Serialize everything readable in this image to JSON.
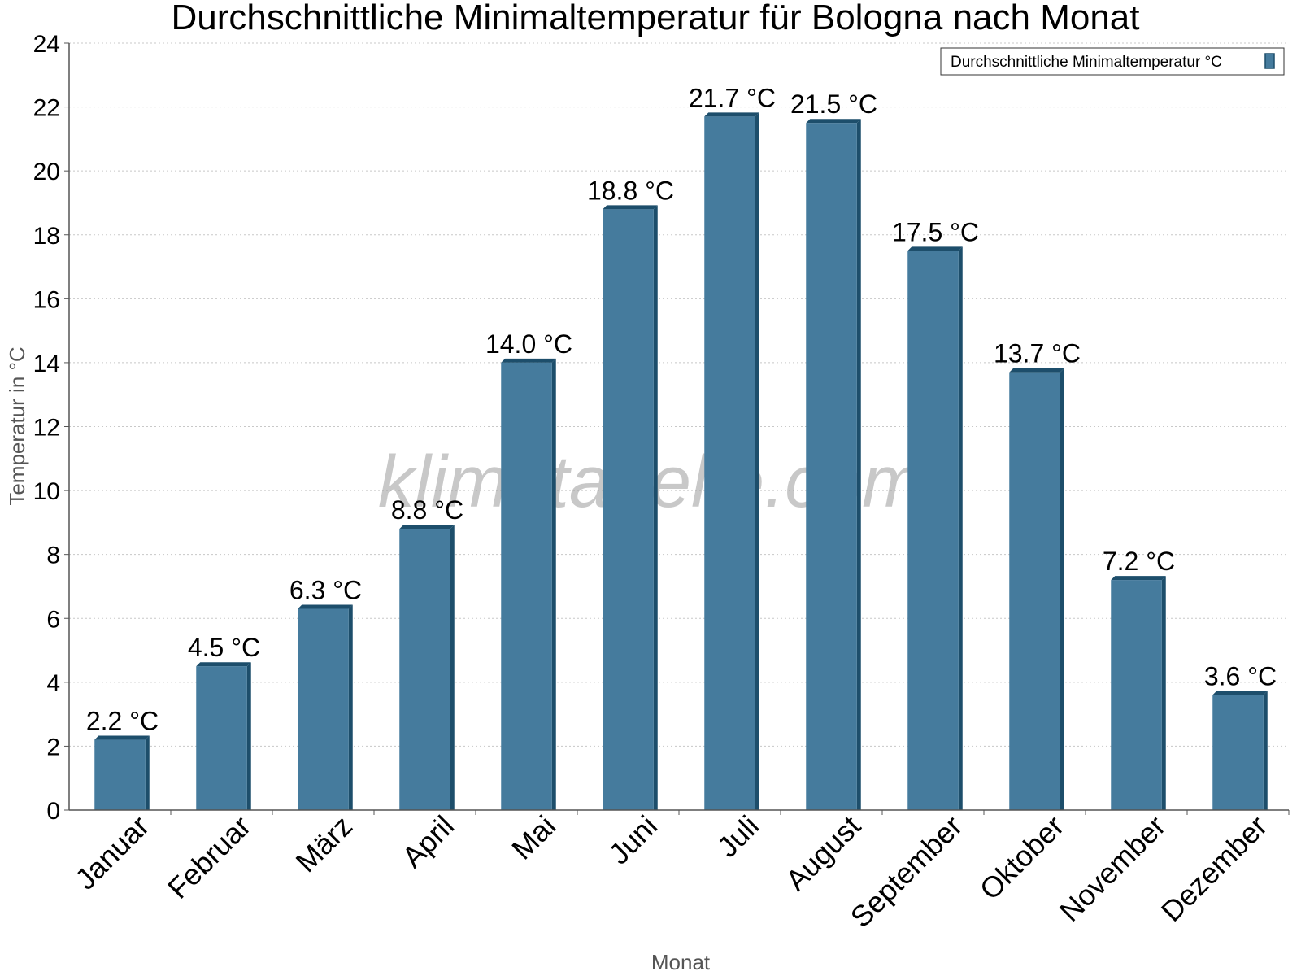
{
  "chart_data": {
    "type": "bar",
    "title": "Durchschnittliche Minimaltemperatur für Bologna nach Monat",
    "xlabel": "Monat",
    "ylabel": "Temperatur in °C",
    "categories": [
      "Januar",
      "Februar",
      "März",
      "April",
      "Mai",
      "Juni",
      "Juli",
      "August",
      "September",
      "Oktober",
      "November",
      "Dezember"
    ],
    "series": [
      {
        "name": "Durchschnittliche Minimaltemperatur °C",
        "values": [
          2.2,
          4.5,
          6.3,
          8.8,
          14.0,
          18.8,
          21.7,
          21.5,
          17.5,
          13.7,
          7.2,
          3.6
        ],
        "labels": [
          "2.2 °C",
          "4.5 °C",
          "6.3 °C",
          "8.8 °C",
          "14.0 °C",
          "18.8 °C",
          "21.7 °C",
          "21.5 °C",
          "17.5 °C",
          "13.7 °C",
          "7.2 °C",
          "3.6 °C"
        ]
      }
    ],
    "ylim": [
      0,
      24
    ],
    "yticks": [
      "0",
      "2",
      "4",
      "6",
      "8",
      "10",
      "12",
      "14",
      "16",
      "18",
      "20",
      "22",
      "24"
    ],
    "grid": true,
    "legend_position": "top-right",
    "watermark": "klimatabelle.com",
    "colors": {
      "bar_front": "#457b9d",
      "bar_side": "#1d4e6b",
      "grid": "#c8c8c8",
      "axis": "#555555"
    }
  }
}
